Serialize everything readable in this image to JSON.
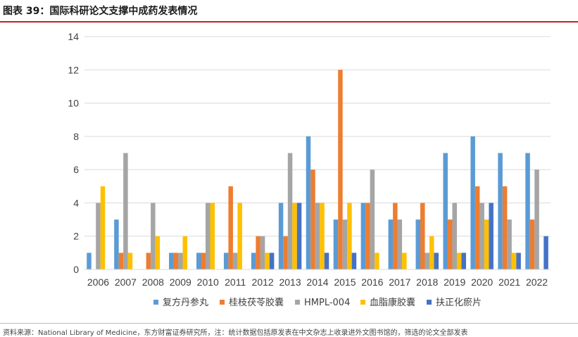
{
  "figure": {
    "title": "图表 39：国际科研论文支撑中成药发表情况",
    "source_note": "资料来源：National Library of Medicine，东方财富证券研究所，注：统计数据包括原发表在中文杂志上收录进外文图书馆的，筛选的论文全部发表"
  },
  "chart_data": {
    "type": "bar",
    "categories": [
      "2006",
      "2007",
      "2008",
      "2009",
      "2010",
      "2011",
      "2012",
      "2013",
      "2014",
      "2015",
      "2016",
      "2017",
      "2018",
      "2019",
      "2020",
      "2021",
      "2022"
    ],
    "ylim": [
      0,
      14
    ],
    "yticks": [
      0,
      2,
      4,
      6,
      8,
      10,
      12,
      14
    ],
    "grid": true,
    "legend_position": "bottom",
    "series": [
      {
        "name": "复方丹参丸",
        "color": "#5b9bd5",
        "values": [
          1,
          3,
          0,
          1,
          1,
          1,
          1,
          4,
          8,
          3,
          4,
          3,
          3,
          7,
          8,
          7,
          7
        ]
      },
      {
        "name": "桂枝茯苓胶囊",
        "color": "#ed7d31",
        "values": [
          0,
          1,
          1,
          1,
          1,
          5,
          2,
          2,
          6,
          12,
          4,
          4,
          4,
          3,
          5,
          5,
          3
        ]
      },
      {
        "name": "HMPL-004",
        "color": "#a5a5a5",
        "values": [
          4,
          7,
          4,
          1,
          4,
          1,
          2,
          7,
          4,
          3,
          6,
          3,
          1,
          4,
          4,
          3,
          6
        ]
      },
      {
        "name": "血脂康胶囊",
        "color": "#ffc000",
        "values": [
          5,
          1,
          2,
          2,
          4,
          4,
          1,
          4,
          4,
          4,
          1,
          1,
          2,
          1,
          3,
          1,
          0
        ]
      },
      {
        "name": "扶正化瘀片",
        "color": "#4472c4",
        "values": [
          0,
          0,
          0,
          0,
          0,
          0,
          1,
          4,
          1,
          1,
          0,
          0,
          1,
          1,
          4,
          1,
          2
        ]
      }
    ]
  }
}
